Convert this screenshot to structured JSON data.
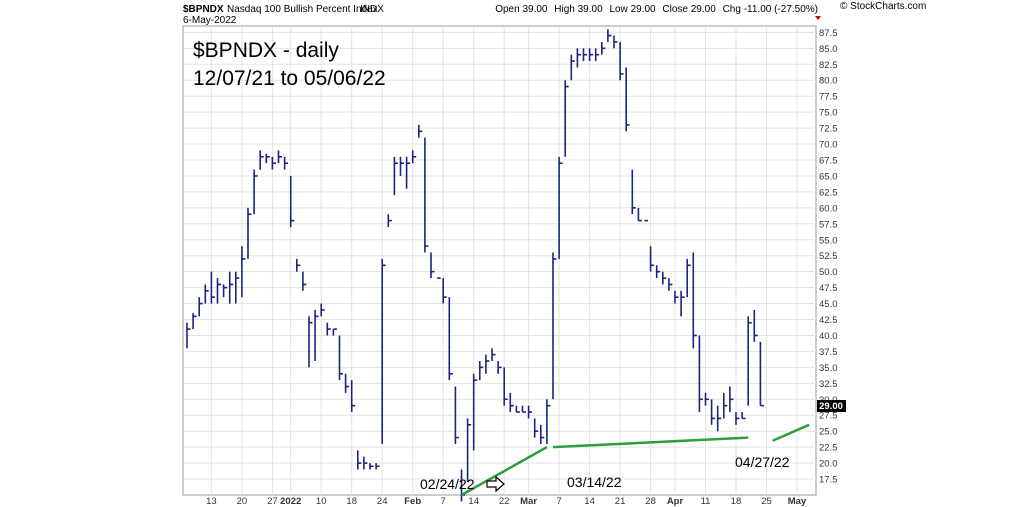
{
  "header": {
    "symbol": "$BPNDX",
    "name": "Nasdaq 100 Bullish Percent Index",
    "exchange": "INDX",
    "date": "6-May-2022",
    "open_label": "Open",
    "open": "39.00",
    "high_label": "High",
    "high": "39.00",
    "low_label": "Low",
    "low": "29.00",
    "close_label": "Close",
    "close": "29.00",
    "chg_label": "Chg",
    "chg": "-11.00 (-27.50%)",
    "source": "© StockCharts.com"
  },
  "annotations": {
    "title_line1": "$BPNDX - daily",
    "title_line2": "12/07/21 to 05/06/22",
    "label_a": "02/24/22",
    "label_b": "03/14/22",
    "label_c": "04/27/22"
  },
  "colors": {
    "bar": "#1a237e",
    "trend": "#2e9e3e",
    "last_price_box": "#000000",
    "down_arrow": "#cc0000"
  },
  "chart_data": {
    "type": "bar",
    "subtype": "hlc-price-bars",
    "ylim": [
      15,
      88.5
    ],
    "yticks": [
      17.5,
      20.0,
      22.5,
      25.0,
      27.5,
      30.0,
      32.5,
      35.0,
      37.5,
      40.0,
      42.5,
      45.0,
      47.5,
      50.0,
      52.5,
      55.0,
      57.5,
      60.0,
      62.5,
      65.0,
      67.5,
      70.0,
      72.5,
      75.0,
      77.5,
      80.0,
      82.5,
      85.0,
      87.5
    ],
    "ytick_labels": [
      "17.5",
      "20.0",
      "22.5",
      "25.0",
      "27.5",
      "30.0",
      "32.5",
      "35.0",
      "37.5",
      "40.0",
      "42.5",
      "45.0",
      "47.5",
      "50.0",
      "52.5",
      "55.0",
      "57.5",
      "60.0",
      "62.5",
      "65.0",
      "67.5",
      "70.0",
      "72.5",
      "75.0",
      "77.5",
      "80.0",
      "82.5",
      "85.0",
      "87.5"
    ],
    "last_price_label": "29.00",
    "x_labels": [
      {
        "i": 4,
        "label": "13"
      },
      {
        "i": 9,
        "label": "20"
      },
      {
        "i": 14,
        "label": "27"
      },
      {
        "i": 17,
        "label": "2022"
      },
      {
        "i": 22,
        "label": "10"
      },
      {
        "i": 27,
        "label": "18"
      },
      {
        "i": 32,
        "label": "24"
      },
      {
        "i": 37,
        "label": "Feb"
      },
      {
        "i": 42,
        "label": "7"
      },
      {
        "i": 47,
        "label": "14"
      },
      {
        "i": 52,
        "label": "22"
      },
      {
        "i": 56,
        "label": "Mar"
      },
      {
        "i": 61,
        "label": "7"
      },
      {
        "i": 66,
        "label": "14"
      },
      {
        "i": 71,
        "label": "21"
      },
      {
        "i": 76,
        "label": "28"
      },
      {
        "i": 80,
        "label": "Apr"
      },
      {
        "i": 85,
        "label": "11"
      },
      {
        "i": 90,
        "label": "18"
      },
      {
        "i": 95,
        "label": "25"
      },
      {
        "i": 100,
        "label": "May"
      }
    ],
    "bars": [
      {
        "h": 42,
        "l": 38,
        "c": 41
      },
      {
        "h": 43.5,
        "l": 41,
        "c": 43
      },
      {
        "h": 46,
        "l": 43,
        "c": 45
      },
      {
        "h": 48,
        "l": 45,
        "c": 47
      },
      {
        "h": 50,
        "l": 45,
        "c": 46
      },
      {
        "h": 49,
        "l": 45,
        "c": 48
      },
      {
        "h": 48,
        "l": 46,
        "c": 47.5
      },
      {
        "h": 50,
        "l": 45,
        "c": 48
      },
      {
        "h": 50,
        "l": 45,
        "c": 49
      },
      {
        "h": 54,
        "l": 46,
        "c": 52
      },
      {
        "h": 60,
        "l": 52,
        "c": 59
      },
      {
        "h": 66,
        "l": 59,
        "c": 65
      },
      {
        "h": 69,
        "l": 66,
        "c": 68
      },
      {
        "h": 68.5,
        "l": 67,
        "c": 68
      },
      {
        "h": 68,
        "l": 66,
        "c": 67
      },
      {
        "h": 69,
        "l": 67,
        "c": 68
      },
      {
        "h": 68,
        "l": 66,
        "c": 67
      },
      {
        "h": 65,
        "l": 57,
        "c": 58
      },
      {
        "h": 52,
        "l": 50,
        "c": 51
      },
      {
        "h": 50,
        "l": 47,
        "c": 48
      },
      {
        "h": 43,
        "l": 35,
        "c": 42
      },
      {
        "h": 44,
        "l": 36,
        "c": 43
      },
      {
        "h": 45,
        "l": 43,
        "c": 44
      },
      {
        "h": 42,
        "l": 40,
        "c": 41
      },
      {
        "h": 41,
        "l": 40,
        "c": 41
      },
      {
        "h": 40,
        "l": 33,
        "c": 34
      },
      {
        "h": 34,
        "l": 31,
        "c": 32
      },
      {
        "h": 33,
        "l": 28,
        "c": 29
      },
      {
        "h": 22,
        "l": 19,
        "c": 20
      },
      {
        "h": 21,
        "l": 19,
        "c": 20
      },
      {
        "h": 20,
        "l": 19,
        "c": 19.5
      },
      {
        "h": 20,
        "l": 19,
        "c": 19.5
      },
      {
        "h": 52,
        "l": 23,
        "c": 51
      },
      {
        "h": 59,
        "l": 57,
        "c": 58
      },
      {
        "h": 68,
        "l": 62,
        "c": 67
      },
      {
        "h": 68,
        "l": 65,
        "c": 67
      },
      {
        "h": 68,
        "l": 63,
        "c": 67
      },
      {
        "h": 69,
        "l": 67,
        "c": 68
      },
      {
        "h": 73,
        "l": 71,
        "c": 72
      },
      {
        "h": 71,
        "l": 53,
        "c": 54
      },
      {
        "h": 53,
        "l": 49,
        "c": 50
      },
      {
        "h": 49,
        "l": 49,
        "c": 49
      },
      {
        "h": 49,
        "l": 45,
        "c": 46
      },
      {
        "h": 46,
        "l": 33,
        "c": 34
      },
      {
        "h": 32,
        "l": 23,
        "c": 24
      },
      {
        "h": 19,
        "l": 14,
        "c": 15
      },
      {
        "h": 27,
        "l": 17,
        "c": 26
      },
      {
        "h": 34,
        "l": 22,
        "c": 33
      },
      {
        "h": 36,
        "l": 33,
        "c": 35
      },
      {
        "h": 37,
        "l": 34,
        "c": 36
      },
      {
        "h": 38,
        "l": 36,
        "c": 37
      },
      {
        "h": 36,
        "l": 34,
        "c": 35
      },
      {
        "h": 35,
        "l": 29,
        "c": 30
      },
      {
        "h": 31,
        "l": 28,
        "c": 29
      },
      {
        "h": 29,
        "l": 28,
        "c": 28
      },
      {
        "h": 29,
        "l": 28,
        "c": 28
      },
      {
        "h": 29,
        "l": 27,
        "c": 28
      },
      {
        "h": 27,
        "l": 24,
        "c": 25
      },
      {
        "h": 26,
        "l": 23,
        "c": 24
      },
      {
        "h": 30,
        "l": 23,
        "c": 29
      },
      {
        "h": 53,
        "l": 30,
        "c": 52
      },
      {
        "h": 68,
        "l": 52,
        "c": 67
      },
      {
        "h": 80,
        "l": 68,
        "c": 79
      },
      {
        "h": 84,
        "l": 80,
        "c": 83
      },
      {
        "h": 85,
        "l": 82,
        "c": 84
      },
      {
        "h": 85,
        "l": 83,
        "c": 84
      },
      {
        "h": 85,
        "l": 83,
        "c": 84
      },
      {
        "h": 85,
        "l": 83,
        "c": 84
      },
      {
        "h": 86,
        "l": 84,
        "c": 85
      },
      {
        "h": 88,
        "l": 86,
        "c": 87
      },
      {
        "h": 87,
        "l": 85,
        "c": 86
      },
      {
        "h": 86,
        "l": 80,
        "c": 81
      },
      {
        "h": 82,
        "l": 72,
        "c": 73
      },
      {
        "h": 66,
        "l": 59,
        "c": 60
      },
      {
        "h": 60,
        "l": 58,
        "c": 58
      },
      {
        "h": 58,
        "l": 58,
        "c": 58
      },
      {
        "h": 54,
        "l": 50,
        "c": 51
      },
      {
        "h": 51,
        "l": 49,
        "c": 50
      },
      {
        "h": 50,
        "l": 48,
        "c": 49
      },
      {
        "h": 49,
        "l": 47,
        "c": 48
      },
      {
        "h": 47,
        "l": 45,
        "c": 46
      },
      {
        "h": 47,
        "l": 43,
        "c": 46
      },
      {
        "h": 52,
        "l": 46,
        "c": 51
      },
      {
        "h": 53,
        "l": 38,
        "c": 40
      },
      {
        "h": 40,
        "l": 28,
        "c": 30
      },
      {
        "h": 31,
        "l": 29,
        "c": 30
      },
      {
        "h": 30,
        "l": 26,
        "c": 27
      },
      {
        "h": 29,
        "l": 25,
        "c": 27
      },
      {
        "h": 31,
        "l": 27,
        "c": 29
      },
      {
        "h": 32,
        "l": 28,
        "c": 30
      },
      {
        "h": 28,
        "l": 26,
        "c": 27
      },
      {
        "h": 28,
        "l": 27,
        "c": 27
      },
      {
        "h": 43,
        "l": 29,
        "c": 42
      },
      {
        "h": 44,
        "l": 39,
        "c": 40
      },
      {
        "h": 39,
        "l": 29,
        "c": 29
      }
    ],
    "trendlines": [
      {
        "from": {
          "i": 45,
          "v": 15
        },
        "to": {
          "i": 59,
          "v": 22.5
        }
      },
      {
        "from": {
          "i": 60,
          "v": 22.5
        },
        "to": {
          "i": 92,
          "v": 24
        }
      },
      {
        "from": {
          "i": 96,
          "v": 23.5
        },
        "to": {
          "i": 102,
          "v": 26
        }
      }
    ]
  }
}
